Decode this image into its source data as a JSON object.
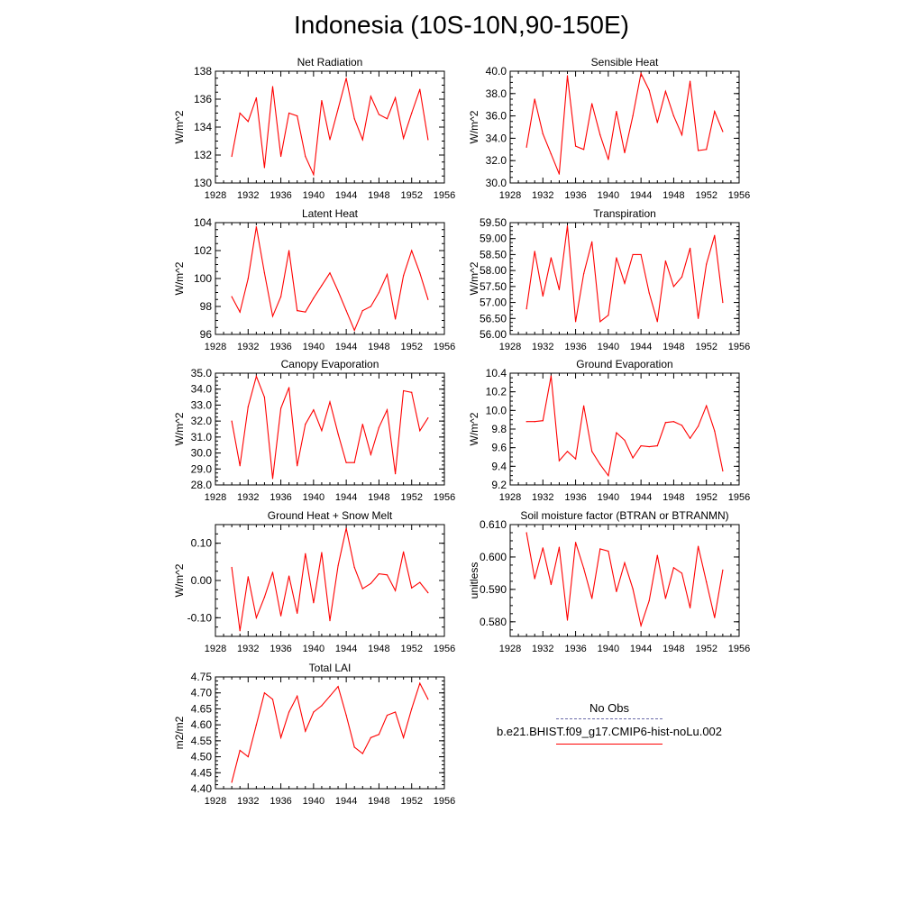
{
  "title": "Indonesia (10S-10N,90-150E)",
  "colors": {
    "series": "#ff0000",
    "axis": "#000000",
    "obs": "#6a6aa8"
  },
  "legend": {
    "obs_label": "No Obs",
    "model_label": "b.e21.BHIST.f09_g17.CMIP6-hist-noLu.002"
  },
  "chart_data": [
    {
      "type": "line",
      "title": "Net Radiation",
      "ylabel": "W/m^2",
      "xlim": [
        1928,
        1956
      ],
      "xticks": [
        1928,
        1932,
        1936,
        1940,
        1944,
        1948,
        1952,
        1956
      ],
      "ylim": [
        130,
        138
      ],
      "yticks": [
        "130",
        "132",
        "134",
        "136",
        "138"
      ],
      "x": [
        1930,
        1931,
        1932,
        1933,
        1934,
        1935,
        1936,
        1937,
        1938,
        1939,
        1940,
        1941,
        1942,
        1943,
        1944,
        1945,
        1946,
        1947,
        1948,
        1949,
        1950,
        1951,
        1952,
        1953,
        1954
      ],
      "values": [
        131.9,
        135.0,
        134.4,
        136.1,
        131.1,
        136.9,
        131.9,
        135.0,
        134.8,
        131.9,
        130.6,
        135.9,
        133.1,
        135.3,
        137.5,
        134.6,
        133.1,
        136.2,
        134.9,
        134.6,
        136.1,
        133.2,
        135.0,
        136.7,
        133.1
      ]
    },
    {
      "type": "line",
      "title": "Sensible Heat",
      "ylabel": "W/m^2",
      "xlim": [
        1928,
        1956
      ],
      "xticks": [
        1928,
        1932,
        1936,
        1940,
        1944,
        1948,
        1952,
        1956
      ],
      "ylim": [
        30,
        40
      ],
      "yticks": [
        "30.0",
        "32.0",
        "34.0",
        "36.0",
        "38.0",
        "40.0"
      ],
      "x": [
        1930,
        1931,
        1932,
        1933,
        1934,
        1935,
        1936,
        1937,
        1938,
        1939,
        1940,
        1941,
        1942,
        1943,
        1944,
        1945,
        1946,
        1947,
        1948,
        1949,
        1950,
        1951,
        1952,
        1953,
        1954
      ],
      "values": [
        33.2,
        37.5,
        34.4,
        32.6,
        30.8,
        39.6,
        33.3,
        33.0,
        37.1,
        34.3,
        32.1,
        36.4,
        32.7,
        36.0,
        39.8,
        38.3,
        35.4,
        38.2,
        36.0,
        34.3,
        39.1,
        32.9,
        33.0,
        36.4,
        34.6
      ]
    },
    {
      "type": "line",
      "title": "Latent Heat",
      "ylabel": "W/m^2",
      "xlim": [
        1928,
        1956
      ],
      "xticks": [
        1928,
        1932,
        1936,
        1940,
        1944,
        1948,
        1952,
        1956
      ],
      "ylim": [
        96,
        104
      ],
      "yticks": [
        "96",
        "98",
        "100",
        "102",
        "104"
      ],
      "x": [
        1930,
        1931,
        1932,
        1933,
        1934,
        1935,
        1936,
        1937,
        1938,
        1939,
        1940,
        1941,
        1942,
        1943,
        1944,
        1945,
        1946,
        1947,
        1948,
        1949,
        1950,
        1951,
        1952,
        1953,
        1954
      ],
      "values": [
        98.7,
        97.6,
        100.0,
        103.7,
        100.4,
        97.3,
        98.7,
        102.0,
        97.7,
        97.6,
        98.6,
        99.5,
        100.4,
        99.1,
        97.7,
        96.3,
        97.7,
        98.0,
        99.0,
        100.3,
        97.1,
        100.2,
        102.0,
        100.4,
        98.5
      ]
    },
    {
      "type": "line",
      "title": "Transpiration",
      "ylabel": "W/m^2",
      "xlim": [
        1928,
        1956
      ],
      "xticks": [
        1928,
        1932,
        1936,
        1940,
        1944,
        1948,
        1952,
        1956
      ],
      "ylim": [
        56,
        59.5
      ],
      "yticks": [
        "56.00",
        "56.50",
        "57.00",
        "57.50",
        "58.00",
        "58.50",
        "59.00",
        "59.50"
      ],
      "x": [
        1930,
        1931,
        1932,
        1933,
        1934,
        1935,
        1936,
        1937,
        1938,
        1939,
        1940,
        1941,
        1942,
        1943,
        1944,
        1945,
        1946,
        1947,
        1948,
        1949,
        1950,
        1951,
        1952,
        1953,
        1954
      ],
      "values": [
        56.8,
        58.6,
        57.2,
        58.4,
        57.4,
        59.4,
        56.4,
        57.9,
        58.9,
        56.4,
        56.6,
        58.4,
        57.6,
        58.5,
        58.5,
        57.3,
        56.4,
        58.3,
        57.5,
        57.8,
        58.7,
        56.5,
        58.2,
        59.1,
        57.0
      ]
    },
    {
      "type": "line",
      "title": "Canopy Evaporation",
      "ylabel": "W/m^2",
      "xlim": [
        1928,
        1956
      ],
      "xticks": [
        1928,
        1932,
        1936,
        1940,
        1944,
        1948,
        1952,
        1956
      ],
      "ylim": [
        28,
        35
      ],
      "yticks": [
        "28.0",
        "29.0",
        "30.0",
        "31.0",
        "32.0",
        "33.0",
        "34.0",
        "35.0"
      ],
      "x": [
        1930,
        1931,
        1932,
        1933,
        1934,
        1935,
        1936,
        1937,
        1938,
        1939,
        1940,
        1941,
        1942,
        1943,
        1944,
        1945,
        1946,
        1947,
        1948,
        1949,
        1950,
        1951,
        1952,
        1953,
        1954
      ],
      "values": [
        32.0,
        29.2,
        32.9,
        34.8,
        33.5,
        28.4,
        32.8,
        34.1,
        29.2,
        31.8,
        32.7,
        31.4,
        33.2,
        31.2,
        29.4,
        29.4,
        31.8,
        29.9,
        31.6,
        32.7,
        28.7,
        33.9,
        33.8,
        31.4,
        32.2
      ]
    },
    {
      "type": "line",
      "title": "Ground Evaporation",
      "ylabel": "W/m^2",
      "xlim": [
        1928,
        1956
      ],
      "xticks": [
        1928,
        1932,
        1936,
        1940,
        1944,
        1948,
        1952,
        1956
      ],
      "ylim": [
        9.2,
        10.4
      ],
      "yticks": [
        "9.2",
        "9.4",
        "9.6",
        "9.8",
        "10.0",
        "10.2",
        "10.4"
      ],
      "x": [
        1930,
        1931,
        1932,
        1933,
        1934,
        1935,
        1936,
        1937,
        1938,
        1939,
        1940,
        1941,
        1942,
        1943,
        1944,
        1945,
        1946,
        1947,
        1948,
        1949,
        1950,
        1951,
        1952,
        1953,
        1954
      ],
      "values": [
        9.88,
        9.88,
        9.89,
        10.37,
        9.46,
        9.56,
        9.48,
        10.05,
        9.56,
        9.42,
        9.3,
        9.76,
        9.68,
        9.49,
        9.62,
        9.61,
        9.62,
        9.87,
        9.88,
        9.84,
        9.7,
        9.83,
        10.05,
        9.78,
        9.35
      ]
    },
    {
      "type": "line",
      "title": "Ground Heat + Snow Melt",
      "ylabel": "W/m^2",
      "xlim": [
        1928,
        1956
      ],
      "xticks": [
        1928,
        1932,
        1936,
        1940,
        1944,
        1948,
        1952,
        1956
      ],
      "ylim": [
        -0.15,
        0.15
      ],
      "yticks": [
        "-0.10",
        "0.00",
        "0.10"
      ],
      "ytick_values": [
        -0.1,
        0.0,
        0.1
      ],
      "x": [
        1930,
        1931,
        1932,
        1933,
        1934,
        1935,
        1936,
        1937,
        1938,
        1939,
        1940,
        1941,
        1942,
        1943,
        1944,
        1945,
        1946,
        1947,
        1948,
        1949,
        1950,
        1951,
        1952,
        1953,
        1954
      ],
      "values": [
        0.035,
        -0.135,
        0.01,
        -0.1,
        -0.045,
        0.022,
        -0.095,
        0.012,
        -0.088,
        0.072,
        -0.06,
        0.075,
        -0.108,
        0.04,
        0.14,
        0.035,
        -0.022,
        -0.008,
        0.018,
        0.015,
        -0.027,
        0.077,
        -0.02,
        -0.005,
        -0.033
      ]
    },
    {
      "type": "line",
      "title": "Soil moisture factor (BTRAN or BTRANMN)",
      "ylabel": "unitless",
      "xlim": [
        1928,
        1956
      ],
      "xticks": [
        1928,
        1932,
        1936,
        1940,
        1944,
        1948,
        1952,
        1956
      ],
      "ylim": [
        0.5755,
        0.61
      ],
      "yticks": [
        "0.580",
        "0.590",
        "0.600",
        "0.610"
      ],
      "ytick_values": [
        0.58,
        0.59,
        0.6,
        0.61
      ],
      "x": [
        1930,
        1931,
        1932,
        1933,
        1934,
        1935,
        1936,
        1937,
        1938,
        1939,
        1940,
        1941,
        1942,
        1943,
        1944,
        1945,
        1946,
        1947,
        1948,
        1949,
        1950,
        1951,
        1952,
        1953,
        1954
      ],
      "values": [
        0.6075,
        0.5933,
        0.6028,
        0.5915,
        0.603,
        0.5805,
        0.6045,
        0.5965,
        0.5872,
        0.6025,
        0.6018,
        0.5893,
        0.5982,
        0.5902,
        0.5788,
        0.5865,
        0.6005,
        0.5872,
        0.5967,
        0.595,
        0.5843,
        0.6033,
        0.5923,
        0.5813,
        0.596
      ]
    },
    {
      "type": "line",
      "title": "Total LAI",
      "ylabel": "m2/m2",
      "xlim": [
        1928,
        1956
      ],
      "xticks": [
        1928,
        1932,
        1936,
        1940,
        1944,
        1948,
        1952,
        1956
      ],
      "ylim": [
        4.4,
        4.75
      ],
      "yticks": [
        "4.40",
        "4.45",
        "4.50",
        "4.55",
        "4.60",
        "4.65",
        "4.70",
        "4.75"
      ],
      "x": [
        1930,
        1931,
        1932,
        1933,
        1934,
        1935,
        1936,
        1937,
        1938,
        1939,
        1940,
        1941,
        1942,
        1943,
        1944,
        1945,
        1946,
        1947,
        1948,
        1949,
        1950,
        1951,
        1952,
        1953,
        1954
      ],
      "values": [
        4.42,
        4.52,
        4.5,
        4.6,
        4.7,
        4.68,
        4.56,
        4.64,
        4.69,
        4.58,
        4.64,
        4.66,
        4.69,
        4.72,
        4.63,
        4.53,
        4.51,
        4.56,
        4.57,
        4.63,
        4.64,
        4.56,
        4.65,
        4.73,
        4.68
      ]
    }
  ]
}
